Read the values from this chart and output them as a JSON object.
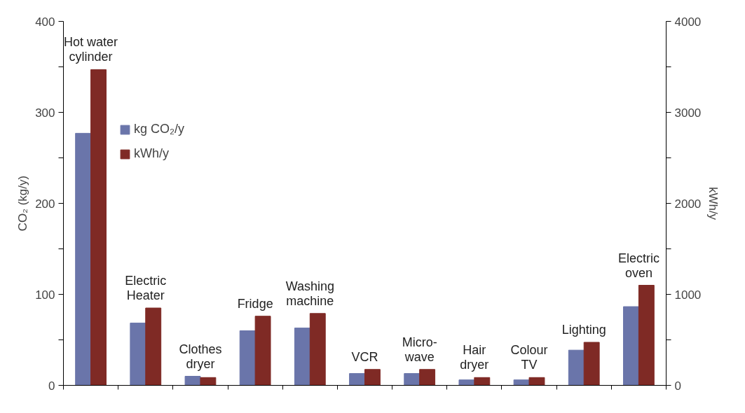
{
  "chart_data": {
    "type": "bar",
    "ylabel": "CO₂ (kg/y)",
    "y2label": "kWh/y",
    "categories": [
      "Hot water\ncylinder",
      "Electric\nHeater",
      "Clothes\ndryer",
      "Fridge",
      "Washing\nmachine",
      "VCR",
      "Micro-\nwave",
      "Hair\ndryer",
      "Colour\nTV",
      "Lighting",
      "Electric\noven"
    ],
    "series": [
      {
        "name": "kg CO₂/y",
        "color": "#6a75aa",
        "values": [
          277,
          68.5,
          10,
          60,
          63,
          13,
          13,
          6,
          6,
          38.7,
          86.5
        ]
      },
      {
        "name": "kWh/y",
        "color": "#7f2a25",
        "axis": "y2",
        "values": [
          3470,
          850,
          86,
          760,
          790,
          175,
          175,
          86,
          86,
          473,
          1100
        ]
      }
    ],
    "ylim": [
      0,
      400
    ],
    "yticks": [
      0,
      {
        "value": 50,
        "label": null
      },
      100,
      {
        "value": 150,
        "label": null
      },
      200,
      {
        "value": 250,
        "label": null
      },
      300,
      {
        "value": 350,
        "label": null
      },
      400
    ],
    "y2lim": [
      0,
      4000
    ],
    "y2ticks": [
      0,
      {
        "value": 500,
        "label": null
      },
      1000,
      {
        "value": 1500,
        "label": null
      },
      2000,
      {
        "value": 2500,
        "label": null
      },
      3000,
      {
        "value": 3500,
        "label": null
      },
      4000
    ],
    "tick_labels": "y",
    "grid": false,
    "legend": "top left"
  }
}
